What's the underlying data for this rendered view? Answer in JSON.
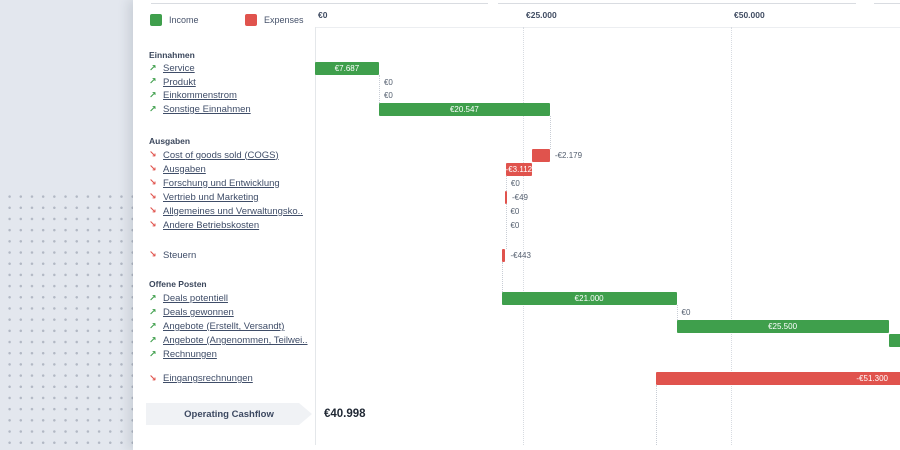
{
  "legend": {
    "income_label": "Income",
    "expenses_label": "Expenses"
  },
  "colors": {
    "income": "#3f9f4c",
    "expense": "#e0534d"
  },
  "footer": {
    "label": "Operating Cashflow",
    "value": "€40.998"
  },
  "chart_data": {
    "type": "bar",
    "subtype": "horizontal-waterfall-cashflow",
    "title": "",
    "xlabel": "",
    "ylabel": "",
    "grid": "vertical-dotted",
    "legend_position": "top-left",
    "x_axis": {
      "ticks": [
        {
          "label": "€0",
          "value": 0
        },
        {
          "label": "€25.000",
          "value": 25000
        },
        {
          "label": "€50.000",
          "value": 50000
        }
      ],
      "visible_range": [
        0,
        70000
      ]
    },
    "groups": [
      {
        "heading": "Einnahmen",
        "items": [
          {
            "name": "Service",
            "type": "income",
            "link": true,
            "amount": 7687,
            "value_label": "€7.687",
            "bar": {
              "start": 0,
              "end": 7687,
              "label": "inside"
            }
          },
          {
            "name": "Produkt",
            "type": "income",
            "link": true,
            "amount": 0,
            "value_label": "€0",
            "bar": {
              "zero_at": 7687
            }
          },
          {
            "name": "Einkommenstrom",
            "type": "income",
            "link": true,
            "amount": 0,
            "value_label": "€0",
            "bar": {
              "zero_at": 7687
            }
          },
          {
            "name": "Sonstige Einnahmen",
            "type": "income",
            "link": true,
            "amount": 20547,
            "value_label": "€20.547",
            "bar": {
              "start": 7687,
              "end": 28234,
              "label": "inside"
            }
          }
        ]
      },
      {
        "heading": "Ausgaben",
        "items": [
          {
            "name": "Cost of goods sold (COGS)",
            "type": "expense",
            "link": true,
            "amount": -2179,
            "value_label": "-€2.179",
            "bar": {
              "start": 26055,
              "end": 28234,
              "label": "right"
            }
          },
          {
            "name": "Ausgaben",
            "type": "expense",
            "link": true,
            "amount": -3112,
            "value_label": "-€3.112",
            "bar": {
              "start": 22943,
              "end": 26055,
              "label": "inside"
            }
          },
          {
            "name": "Forschung und Entwicklung",
            "type": "expense",
            "link": true,
            "amount": 0,
            "value_label": "€0",
            "bar": {
              "zero_at": 22943
            }
          },
          {
            "name": "Vertrieb und Marketing",
            "type": "expense",
            "link": true,
            "amount": -49,
            "value_label": "-€49",
            "bar": {
              "start": 22894,
              "end": 22943,
              "label": "right"
            }
          },
          {
            "name": "Allgemeines und Verwaltungsko..",
            "type": "expense",
            "link": true,
            "amount": 0,
            "value_label": "€0",
            "bar": {
              "zero_at": 22894
            }
          },
          {
            "name": "Andere Betriebskosten",
            "type": "expense",
            "link": true,
            "amount": 0,
            "value_label": "€0",
            "bar": {
              "zero_at": 22894
            }
          }
        ]
      },
      {
        "heading": null,
        "items": [
          {
            "name": "Steuern",
            "type": "expense",
            "link": false,
            "amount": -443,
            "value_label": "-€443",
            "bar": {
              "start": 22451,
              "end": 22894,
              "label": "right"
            }
          }
        ]
      },
      {
        "heading": "Offene Posten",
        "items": [
          {
            "name": "Deals potentiell",
            "type": "income",
            "link": true,
            "amount": 21000,
            "value_label": "€21.000",
            "bar": {
              "start": 22451,
              "end": 43451,
              "label": "inside"
            }
          },
          {
            "name": "Deals gewonnen",
            "type": "income",
            "link": true,
            "amount": 0,
            "value_label": "€0",
            "bar": {
              "zero_at": 43451
            }
          },
          {
            "name": "Angebote (Erstellt, Versandt)",
            "type": "income",
            "link": true,
            "amount": 25500,
            "value_label": "€25.500",
            "bar": {
              "start": 43451,
              "end": 68951,
              "label": "inside"
            }
          },
          {
            "name": "Angebote (Angenommen, Teilwei..",
            "type": "income",
            "link": true,
            "amount": null,
            "value_label": null,
            "bar": {
              "start": 68951,
              "end": null,
              "clipped_right": true
            }
          },
          {
            "name": "Rechnungen",
            "type": "income",
            "link": true,
            "amount": null,
            "value_label": null,
            "bar": null
          }
        ]
      },
      {
        "heading": null,
        "items": [
          {
            "name": "Eingangsrechnungen",
            "type": "expense",
            "link": true,
            "amount": -51300,
            "value_label": "-€51.300",
            "bar": {
              "start": 40998,
              "end": 92298,
              "label": "inside-right",
              "clipped_right": true
            }
          }
        ]
      }
    ],
    "total": {
      "label": "Operating Cashflow",
      "value": 40998,
      "value_label": "€40.998"
    }
  }
}
